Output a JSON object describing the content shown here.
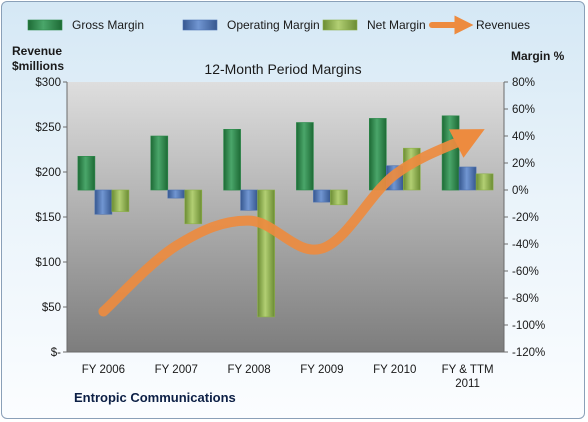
{
  "chart_data": {
    "type": "bar",
    "title": "12-Month Period Margins",
    "footer_label": "Entropic Communications",
    "left_axis_label": [
      "Revenue",
      "$millions"
    ],
    "right_axis_label": "Margin %",
    "categories": [
      [
        "FY 2006"
      ],
      [
        "FY 2007"
      ],
      [
        "FY 2008"
      ],
      [
        "FY 2009"
      ],
      [
        "FY 2010"
      ],
      [
        "FY & TTM",
        "2011"
      ]
    ],
    "left_axis": {
      "range": [
        0,
        300
      ],
      "ticks": [
        300,
        250,
        200,
        150,
        100,
        50,
        0
      ],
      "tick_labels": [
        "$300",
        "$250",
        "$200",
        "$150",
        "$100",
        "$50",
        "$-"
      ]
    },
    "right_axis": {
      "range": [
        -120,
        80
      ],
      "ticks": [
        80,
        60,
        40,
        20,
        0,
        -20,
        -40,
        -60,
        -80,
        -100,
        -120
      ],
      "tick_labels": [
        "80%",
        "60%",
        "40%",
        "20%",
        "0%",
        "-20%",
        "-40%",
        "-60%",
        "-80%",
        "-100%",
        "-120%"
      ]
    },
    "series": [
      {
        "name": "Gross Margin",
        "kind": "bar",
        "axis": "right",
        "color": "#2e8b4c",
        "values": [
          25,
          40,
          45,
          50,
          53,
          55
        ]
      },
      {
        "name": "Operating Margin",
        "kind": "bar",
        "axis": "right",
        "color": "#4f74b3",
        "values": [
          -18,
          -6,
          -15,
          -9,
          18,
          17
        ]
      },
      {
        "name": "Net Margin",
        "kind": "bar",
        "axis": "right",
        "color": "#8cb04a",
        "values": [
          -16,
          -25,
          -94,
          -11,
          31,
          12
        ]
      },
      {
        "name": "Revenues",
        "kind": "line",
        "axis": "left",
        "color": "#ed8b3f",
        "values": [
          45,
          118,
          146,
          115,
          197,
          238
        ]
      }
    ],
    "grid": false,
    "legend": "top"
  }
}
